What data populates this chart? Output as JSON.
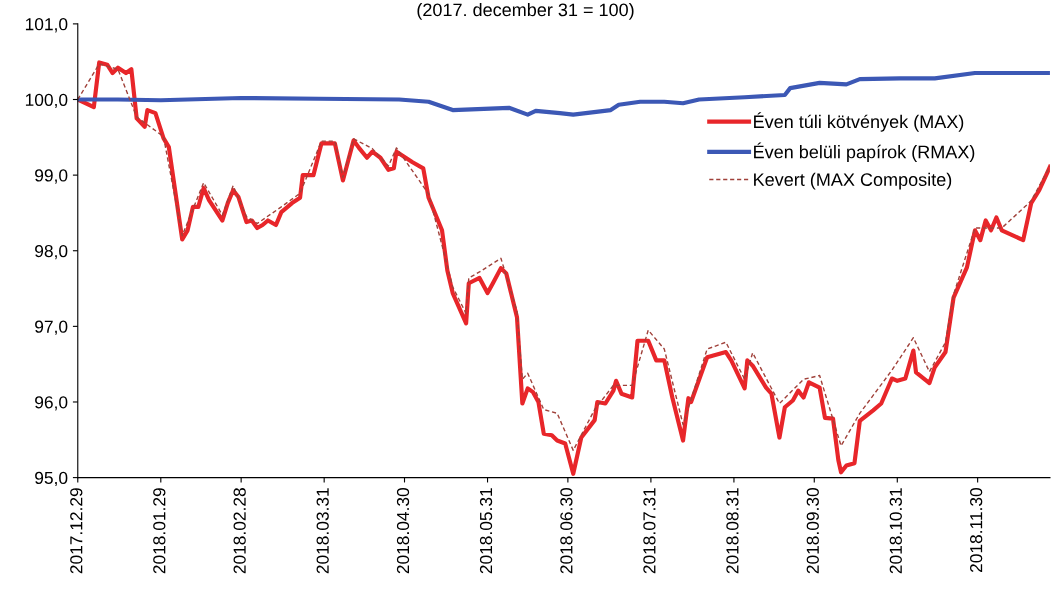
{
  "chart_data": {
    "type": "line",
    "subtitle": "(2017. december 31 = 100)",
    "ylim": [
      95,
      101
    ],
    "yticks": [
      {
        "value": 95,
        "label": "95,0"
      },
      {
        "value": 96,
        "label": "96,0"
      },
      {
        "value": 97,
        "label": "97,0"
      },
      {
        "value": 98,
        "label": "98,0"
      },
      {
        "value": 99,
        "label": "99,0"
      },
      {
        "value": 100,
        "label": "100,0"
      },
      {
        "value": 101,
        "label": "101,0"
      }
    ],
    "xlim": [
      "2017-12-29",
      "2018-12-27"
    ],
    "xticks": [
      {
        "value": "2017-12-29",
        "label": "2017.12.29"
      },
      {
        "value": "2018-01-29",
        "label": "2018.01.29"
      },
      {
        "value": "2018-02-28",
        "label": "2018.02.28"
      },
      {
        "value": "2018-03-31",
        "label": "2018.03.31"
      },
      {
        "value": "2018-04-30",
        "label": "2018.04.30"
      },
      {
        "value": "2018-05-31",
        "label": "2018.05.31"
      },
      {
        "value": "2018-06-30",
        "label": "2018.06.30"
      },
      {
        "value": "2018-07-31",
        "label": "2018.07.31"
      },
      {
        "value": "2018-08-31",
        "label": "2018.08.31"
      },
      {
        "value": "2018-09-30",
        "label": "2018.09.30"
      },
      {
        "value": "2018-10-31",
        "label": "2018.10.31"
      },
      {
        "value": "2018-11-30",
        "label": "2018.11.30"
      }
    ],
    "grid": false,
    "legend": "right",
    "marker": "none",
    "series": [
      {
        "name": "Éven túli kötvények (MAX)",
        "color": "#e8262a",
        "line_style": "solid",
        "x": [
          "2017-12-29",
          "2018-01-04",
          "2018-01-06",
          "2018-01-09",
          "2018-01-11",
          "2018-01-13",
          "2018-01-16",
          "2018-01-18",
          "2018-01-20",
          "2018-01-23",
          "2018-01-24",
          "2018-01-27",
          "2018-01-30",
          "2018-02-01",
          "2018-02-06",
          "2018-02-08",
          "2018-02-10",
          "2018-02-12",
          "2018-02-14",
          "2018-02-16",
          "2018-02-21",
          "2018-02-23",
          "2018-02-25",
          "2018-02-27",
          "2018-03-02",
          "2018-03-04",
          "2018-03-06",
          "2018-03-08",
          "2018-03-10",
          "2018-03-13",
          "2018-03-15",
          "2018-03-19",
          "2018-03-22",
          "2018-03-23",
          "2018-03-27",
          "2018-03-30",
          "2018-04-04",
          "2018-04-07",
          "2018-04-11",
          "2018-04-13",
          "2018-04-16",
          "2018-04-18",
          "2018-04-21",
          "2018-04-24",
          "2018-04-26",
          "2018-04-27",
          "2018-05-03",
          "2018-05-07",
          "2018-05-09",
          "2018-05-14",
          "2018-05-16",
          "2018-05-18",
          "2018-05-23",
          "2018-05-24",
          "2018-05-28",
          "2018-05-31",
          "2018-06-02",
          "2018-06-05",
          "2018-06-07",
          "2018-06-11",
          "2018-06-13",
          "2018-06-15",
          "2018-06-17",
          "2018-06-19",
          "2018-06-21",
          "2018-06-24",
          "2018-06-26",
          "2018-06-29",
          "2018-07-02",
          "2018-07-05",
          "2018-07-10",
          "2018-07-11",
          "2018-07-14",
          "2018-07-17",
          "2018-07-18",
          "2018-07-20",
          "2018-07-24",
          "2018-07-26",
          "2018-07-30",
          "2018-08-02",
          "2018-08-05",
          "2018-08-08",
          "2018-08-12",
          "2018-08-14",
          "2018-08-15",
          "2018-08-21",
          "2018-08-28",
          "2018-08-30",
          "2018-09-04",
          "2018-09-05",
          "2018-09-07",
          "2018-09-12",
          "2018-09-14",
          "2018-09-17",
          "2018-09-19",
          "2018-09-22",
          "2018-09-24",
          "2018-09-26",
          "2018-09-28",
          "2018-10-02",
          "2018-10-04",
          "2018-10-07",
          "2018-10-09",
          "2018-10-10",
          "2018-10-12",
          "2018-10-15",
          "2018-10-17",
          "2018-10-22",
          "2018-10-25",
          "2018-10-29",
          "2018-10-31",
          "2018-11-03",
          "2018-11-06",
          "2018-11-07",
          "2018-11-12",
          "2018-11-14",
          "2018-11-18",
          "2018-11-21",
          "2018-11-26",
          "2018-11-29",
          "2018-12-01",
          "2018-12-03",
          "2018-12-05",
          "2018-12-07",
          "2018-12-09",
          "2018-12-17",
          "2018-12-20",
          "2018-12-23",
          "2018-12-27"
        ],
        "values": [
          100.0,
          99.9,
          100.49,
          100.46,
          100.35,
          100.42,
          100.35,
          100.4,
          99.75,
          99.64,
          99.86,
          99.82,
          99.49,
          99.37,
          98.15,
          98.27,
          98.58,
          98.58,
          98.83,
          98.67,
          98.4,
          98.63,
          98.8,
          98.71,
          98.38,
          98.4,
          98.3,
          98.34,
          98.4,
          98.34,
          98.51,
          98.63,
          98.7,
          99.0,
          99.0,
          99.42,
          99.42,
          98.93,
          99.46,
          99.36,
          99.23,
          99.31,
          99.23,
          99.07,
          99.09,
          99.31,
          99.17,
          99.09,
          98.7,
          98.27,
          97.74,
          97.44,
          97.04,
          97.57,
          97.64,
          97.44,
          97.57,
          97.77,
          97.7,
          97.12,
          95.98,
          96.18,
          96.13,
          96.0,
          95.58,
          95.56,
          95.49,
          95.45,
          95.05,
          95.53,
          95.76,
          96.0,
          95.98,
          96.15,
          96.28,
          96.11,
          96.06,
          96.81,
          96.81,
          96.55,
          96.55,
          96.06,
          95.49,
          96.05,
          96.0,
          96.59,
          96.66,
          96.55,
          96.18,
          96.55,
          96.48,
          96.19,
          96.11,
          95.53,
          95.93,
          96.02,
          96.15,
          96.06,
          96.26,
          96.19,
          95.79,
          95.78,
          95.23,
          95.07,
          95.16,
          95.19,
          95.75,
          95.89,
          95.98,
          96.31,
          96.28,
          96.31,
          96.68,
          96.39,
          96.25,
          96.46,
          96.66,
          97.38,
          97.78,
          98.27,
          98.14,
          98.4,
          98.27,
          98.44,
          98.27,
          98.14,
          98.63,
          98.8,
          99.11
        ]
      },
      {
        "name": "Éven belüli papírok (RMAX)",
        "color": "#3c58b5",
        "line_style": "solid",
        "x": [
          "2017-12-29",
          "2018-01-13",
          "2018-01-29",
          "2018-02-28",
          "2018-03-29",
          "2018-04-28",
          "2018-05-09",
          "2018-05-18",
          "2018-06-08",
          "2018-06-15",
          "2018-06-18",
          "2018-06-27",
          "2018-07-02",
          "2018-07-16",
          "2018-07-19",
          "2018-07-27",
          "2018-08-05",
          "2018-08-12",
          "2018-08-18",
          "2018-09-04",
          "2018-09-19",
          "2018-09-21",
          "2018-10-02",
          "2018-10-12",
          "2018-10-17",
          "2018-11-01",
          "2018-11-14",
          "2018-11-29",
          "2018-12-27"
        ],
        "values": [
          100.0,
          100.0,
          99.99,
          100.02,
          100.01,
          100.0,
          99.97,
          99.86,
          99.89,
          99.8,
          99.85,
          99.82,
          99.8,
          99.86,
          99.93,
          99.97,
          99.97,
          99.95,
          100.0,
          100.03,
          100.06,
          100.15,
          100.22,
          100.2,
          100.27,
          100.28,
          100.28,
          100.35,
          100.35
        ]
      },
      {
        "name": "Kevert (MAX Composite)",
        "color": "#a0413a",
        "line_style": "dashed",
        "x": [
          "2017-12-29",
          "2018-01-06",
          "2018-01-13",
          "2018-01-20",
          "2018-01-30",
          "2018-02-06",
          "2018-02-14",
          "2018-02-21",
          "2018-02-25",
          "2018-03-02",
          "2018-03-06",
          "2018-03-15",
          "2018-03-22",
          "2018-03-30",
          "2018-04-04",
          "2018-04-07",
          "2018-04-11",
          "2018-04-18",
          "2018-04-24",
          "2018-04-27",
          "2018-05-09",
          "2018-05-16",
          "2018-05-18",
          "2018-05-23",
          "2018-05-24",
          "2018-05-28",
          "2018-06-05",
          "2018-06-11",
          "2018-06-13",
          "2018-06-15",
          "2018-06-21",
          "2018-06-26",
          "2018-07-02",
          "2018-07-10",
          "2018-07-17",
          "2018-07-24",
          "2018-07-30",
          "2018-08-05",
          "2018-08-12",
          "2018-08-21",
          "2018-08-28",
          "2018-09-04",
          "2018-09-07",
          "2018-09-17",
          "2018-09-26",
          "2018-10-02",
          "2018-10-10",
          "2018-10-17",
          "2018-10-29",
          "2018-11-06",
          "2018-11-12",
          "2018-11-18",
          "2018-11-21",
          "2018-11-29",
          "2018-12-09",
          "2018-12-20",
          "2018-12-27"
        ],
        "values": [
          100.0,
          100.47,
          100.4,
          99.77,
          99.51,
          98.2,
          98.9,
          98.47,
          98.86,
          98.45,
          98.36,
          98.58,
          98.76,
          99.45,
          99.45,
          98.97,
          99.48,
          99.35,
          99.12,
          99.36,
          98.75,
          97.8,
          97.52,
          97.17,
          97.64,
          97.72,
          97.9,
          97.2,
          96.3,
          96.38,
          95.9,
          95.85,
          95.36,
          95.9,
          96.22,
          96.22,
          96.95,
          96.7,
          95.7,
          96.7,
          96.79,
          96.3,
          96.65,
          95.98,
          96.3,
          96.35,
          95.42,
          95.85,
          96.42,
          96.85,
          96.4,
          96.79,
          97.42,
          98.3,
          98.3,
          98.66,
          99.12
        ]
      }
    ]
  }
}
